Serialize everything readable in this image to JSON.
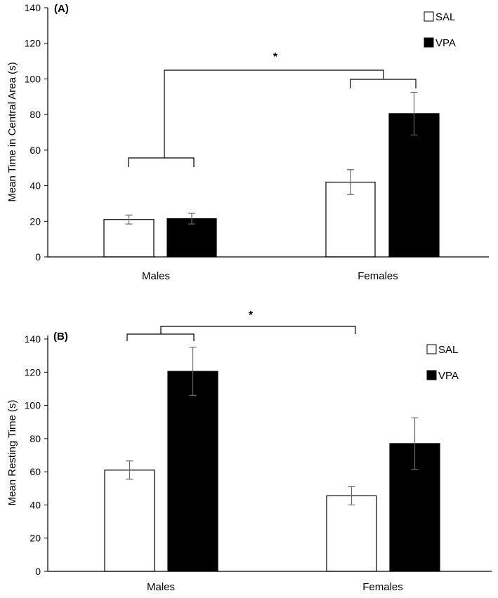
{
  "chart_data": [
    {
      "type": "bar",
      "panel_label": "(A)",
      "ylabel": "Mean Time in Central Area (s)",
      "xlabel": "",
      "ylim": [
        0,
        140
      ],
      "yticks": [
        0,
        20,
        40,
        60,
        80,
        100,
        120,
        140
      ],
      "categories": [
        "Males",
        "Females"
      ],
      "series": [
        {
          "name": "SAL",
          "color": "#ffffff",
          "values": [
            21,
            42
          ],
          "errors": [
            2.5,
            7
          ]
        },
        {
          "name": "VPA",
          "color": "#000000",
          "values": [
            21.5,
            80.5
          ],
          "errors": [
            3,
            12
          ]
        }
      ],
      "legend": [
        "SAL",
        "VPA"
      ],
      "legend_position": "top-right",
      "significance": "*"
    },
    {
      "type": "bar",
      "panel_label": "(B)",
      "ylabel": "Mean Resting Time (s)",
      "xlabel": "",
      "ylim": [
        0,
        140
      ],
      "yticks": [
        0,
        20,
        40,
        60,
        80,
        100,
        120,
        140
      ],
      "categories": [
        "Males",
        "Females"
      ],
      "series": [
        {
          "name": "SAL",
          "color": "#ffffff",
          "values": [
            61,
            45.5
          ],
          "errors": [
            5.5,
            5.5
          ]
        },
        {
          "name": "VPA",
          "color": "#000000",
          "values": [
            120.5,
            77
          ],
          "errors": [
            14.5,
            15.5
          ]
        }
      ],
      "legend": [
        "SAL",
        "VPA"
      ],
      "legend_position": "top-right",
      "significance": "*"
    }
  ]
}
